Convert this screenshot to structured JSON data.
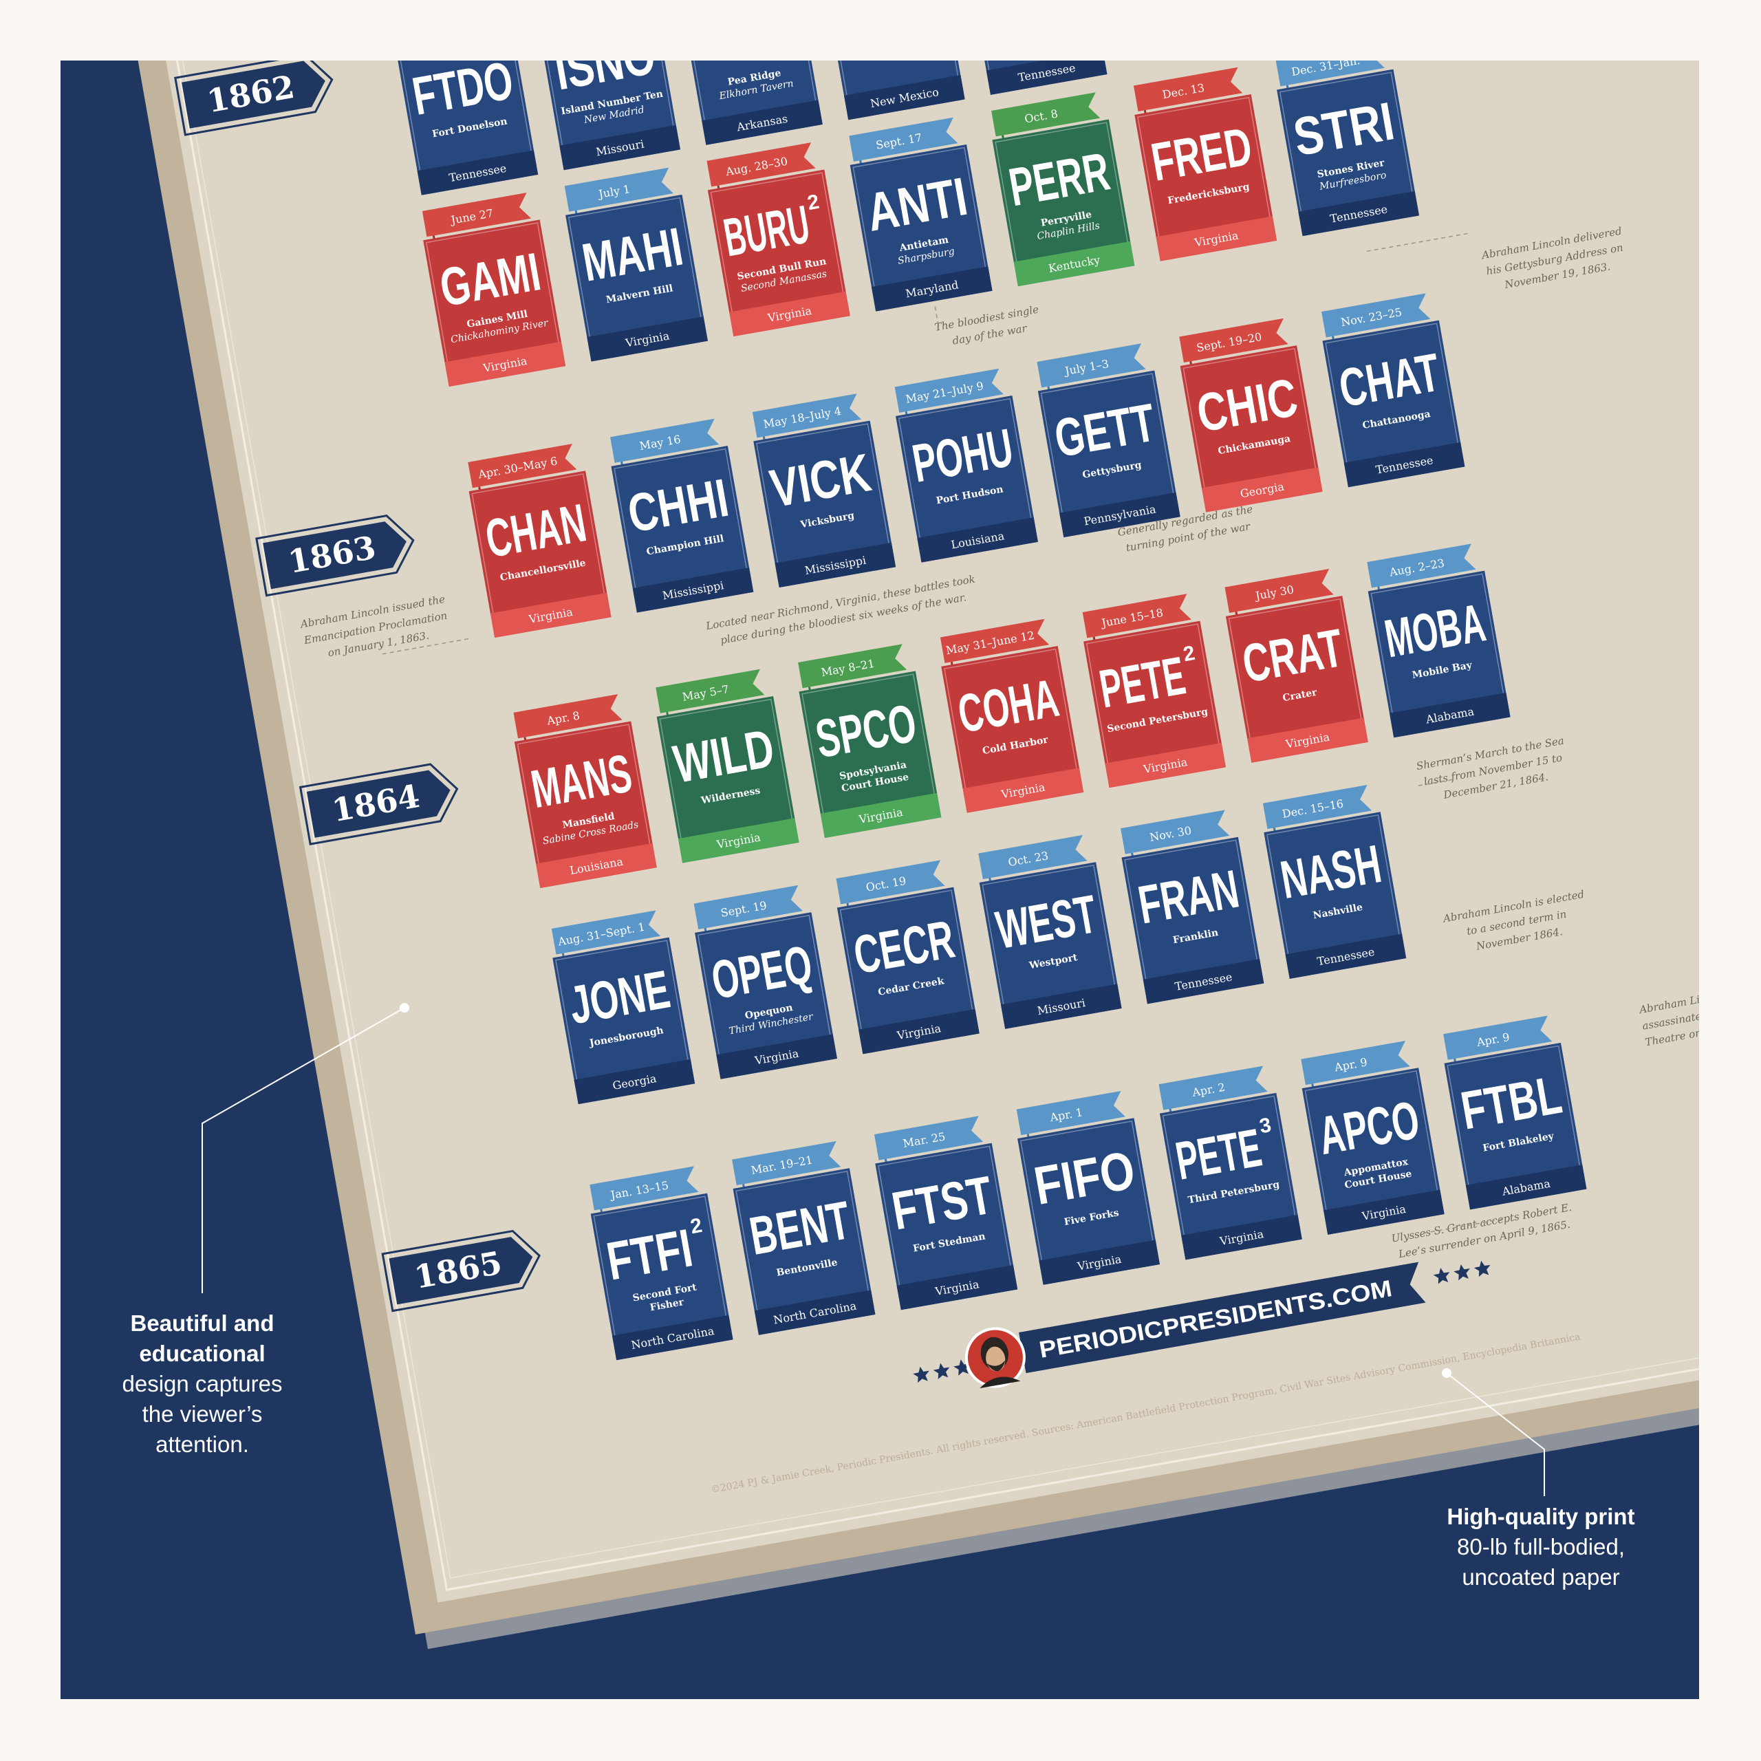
{
  "years": [
    "1862",
    "1863",
    "1864",
    "1865"
  ],
  "rows": [
    {
      "cards": [
        {
          "code": "FTDO",
          "name": [
            "Fort Donelson"
          ],
          "state": "Tennessee",
          "color": "blue"
        },
        {
          "code": "ISNO",
          "name": [
            "Island Number Ten"
          ],
          "alt": "New Madrid",
          "state": "Missouri",
          "color": "blue"
        },
        {
          "name": [
            "Pea Ridge"
          ],
          "alt": "Elkhorn Tavern",
          "state": "Arkansas",
          "color": "blue"
        },
        {
          "state": "New Mexico",
          "color": "blue"
        },
        {
          "state": "Tennessee",
          "color": "blue"
        }
      ]
    },
    {
      "cards": [
        {
          "date": "June 27",
          "code": "GAMI",
          "name": [
            "Gaines Mill"
          ],
          "alt": "Chickahominy River",
          "state": "Virginia",
          "color": "red"
        },
        {
          "date": "July 1",
          "code": "MAHI",
          "name": [
            "Malvern Hill"
          ],
          "state": "Virginia",
          "color": "blue"
        },
        {
          "date": "Aug. 28–30",
          "code": "BURU",
          "sup": "2",
          "name": [
            "Second Bull Run"
          ],
          "alt": "Second Manassas",
          "state": "Virginia",
          "color": "red"
        },
        {
          "date": "Sept. 17",
          "code": "ANTI",
          "name": [
            "Antietam"
          ],
          "alt": "Sharpsburg",
          "state": "Maryland",
          "color": "blue"
        },
        {
          "date": "Oct. 8",
          "code": "PERR",
          "name": [
            "Perryville"
          ],
          "alt": "Chaplin Hills",
          "state": "Kentucky",
          "color": "green"
        },
        {
          "date": "Dec. 13",
          "code": "FRED",
          "name": [
            "Fredericksburg"
          ],
          "state": "Virginia",
          "color": "red"
        },
        {
          "date": "Dec. 31–Jan.",
          "code": "STRI",
          "name": [
            "Stones River"
          ],
          "alt": "Murfreesboro",
          "state": "Tennessee",
          "color": "blue"
        }
      ]
    },
    {
      "cards": [
        {
          "date": "Apr. 30–May 6",
          "code": "CHAN",
          "name": [
            "Chancellorsville"
          ],
          "state": "Virginia",
          "color": "red"
        },
        {
          "date": "May 16",
          "code": "CHHI",
          "name": [
            "Champion Hill"
          ],
          "state": "Mississippi",
          "color": "blue"
        },
        {
          "date": "May 18–July 4",
          "code": "VICK",
          "name": [
            "Vicksburg"
          ],
          "state": "Mississippi",
          "color": "blue"
        },
        {
          "date": "May 21–July 9",
          "code": "POHU",
          "name": [
            "Port Hudson"
          ],
          "state": "Louisiana",
          "color": "blue"
        },
        {
          "date": "July 1–3",
          "code": "GETT",
          "name": [
            "Gettysburg"
          ],
          "state": "Pennsylvania",
          "color": "blue"
        },
        {
          "date": "Sept. 19–20",
          "code": "CHIC",
          "name": [
            "Chickamauga"
          ],
          "state": "Georgia",
          "color": "red"
        },
        {
          "date": "Nov. 23–25",
          "code": "CHAT",
          "name": [
            "Chattanooga"
          ],
          "state": "Tennessee",
          "color": "blue"
        }
      ]
    },
    {
      "cards": [
        {
          "date": "Apr. 8",
          "code": "MANS",
          "name": [
            "Mansfield"
          ],
          "alt": "Sabine Cross Roads",
          "state": "Louisiana",
          "color": "red"
        },
        {
          "date": "May 5–7",
          "code": "WILD",
          "name": [
            "Wilderness"
          ],
          "state": "Virginia",
          "color": "green"
        },
        {
          "date": "May 8–21",
          "code": "SPCO",
          "name": [
            "Spotsylvania",
            "Court House"
          ],
          "state": "Virginia",
          "color": "green"
        },
        {
          "date": "May 31–June 12",
          "code": "COHA",
          "name": [
            "Cold Harbor"
          ],
          "state": "Virginia",
          "color": "red"
        },
        {
          "date": "June 15–18",
          "code": "PETE",
          "sup": "2",
          "name": [
            "Second Petersburg"
          ],
          "state": "Virginia",
          "color": "red"
        },
        {
          "date": "July 30",
          "code": "CRAT",
          "name": [
            "Crater"
          ],
          "state": "Virginia",
          "color": "red"
        },
        {
          "date": "Aug. 2–23",
          "code": "MOBA",
          "name": [
            "Mobile Bay"
          ],
          "state": "Alabama",
          "color": "blue"
        }
      ]
    },
    {
      "cards": [
        {
          "date": "Aug. 31–Sept. 1",
          "code": "JONE",
          "name": [
            "Jonesborough"
          ],
          "state": "Georgia",
          "color": "blue"
        },
        {
          "date": "Sept. 19",
          "code": "OPEQ",
          "name": [
            "Opequon"
          ],
          "alt": "Third Winchester",
          "state": "Virginia",
          "color": "blue"
        },
        {
          "date": "Oct. 19",
          "code": "CECR",
          "name": [
            "Cedar Creek"
          ],
          "state": "Virginia",
          "color": "blue"
        },
        {
          "date": "Oct. 23",
          "code": "WEST",
          "name": [
            "Westport"
          ],
          "state": "Missouri",
          "color": "blue"
        },
        {
          "date": "Nov. 30",
          "code": "FRAN",
          "name": [
            "Franklin"
          ],
          "state": "Tennessee",
          "color": "blue"
        },
        {
          "date": "Dec. 15–16",
          "code": "NASH",
          "name": [
            "Nashville"
          ],
          "state": "Tennessee",
          "color": "blue"
        }
      ]
    },
    {
      "cards": [
        {
          "date": "Jan. 13–15",
          "code": "FTFI",
          "sup": "2",
          "name": [
            "Second Fort",
            "Fisher"
          ],
          "state": "North Carolina",
          "color": "blue"
        },
        {
          "date": "Mar. 19–21",
          "code": "BENT",
          "name": [
            "Bentonville"
          ],
          "state": "North Carolina",
          "color": "blue"
        },
        {
          "date": "Mar. 25",
          "code": "FTST",
          "name": [
            "Fort Stedman"
          ],
          "state": "Virginia",
          "color": "blue"
        },
        {
          "date": "Apr. 1",
          "code": "FIFO",
          "name": [
            "Five Forks"
          ],
          "state": "Virginia",
          "color": "blue"
        },
        {
          "date": "Apr. 2",
          "code": "PETE",
          "sup": "3",
          "name": [
            "Third Petersburg"
          ],
          "state": "Virginia",
          "color": "blue"
        },
        {
          "date": "Apr. 9",
          "code": "APCO",
          "name": [
            "Appomattox",
            "Court House"
          ],
          "state": "Virginia",
          "color": "blue"
        },
        {
          "date": "Apr. 9",
          "code": "FTBL",
          "name": [
            "Fort Blakeley"
          ],
          "state": "Alabama",
          "color": "blue"
        }
      ]
    }
  ],
  "notes": [
    {
      "lines": [
        "The bloodiest single",
        "day of the war"
      ]
    },
    {
      "lines": [
        "Abraham Lincoln delivered",
        "his Gettysburg Address on",
        "November 19, 1863."
      ]
    },
    {
      "lines": [
        "Abraham Lincoln issued the",
        "Emancipation Proclamation",
        "on January 1, 1863."
      ]
    },
    {
      "lines": [
        "Located near Richmond, Virginia, these battles took",
        "place during the bloodiest six weeks of the war."
      ]
    },
    {
      "lines": [
        "Generally regarded as the",
        "turning point of the war"
      ]
    },
    {
      "lines": [
        "Sherman’s March to the Sea",
        "lasts from November 15 to",
        "December 21, 1864."
      ]
    },
    {
      "lines": [
        "Abraham Lincoln is elected",
        "to a  second term in",
        "November 1864."
      ]
    },
    {
      "lines": [
        "Abraham Linco",
        "assassinated a",
        "Theatre on Apr"
      ]
    },
    {
      "lines": [
        "Ulysses S. Grant accepts Robert E.",
        "Lee’s surrender on April 9, 1865."
      ]
    }
  ],
  "brand": "PERIODICPRESIDENTS.COM",
  "footer": "©2024 PJ & Jamie Creek, Periodic Presidents. All rights reserved. Sources: American Battlefield Protection Program, Civil War Sites Advisory Commission, Encyclopedia Britannica",
  "callouts": [
    {
      "bold": [
        "Beautiful and",
        "educational"
      ],
      "text": [
        "design captures",
        "the viewer’s",
        "attention."
      ]
    },
    {
      "bold": [
        "High-quality print"
      ],
      "text": [
        "80-lb full-bodied,",
        "uncoated paper"
      ]
    }
  ]
}
